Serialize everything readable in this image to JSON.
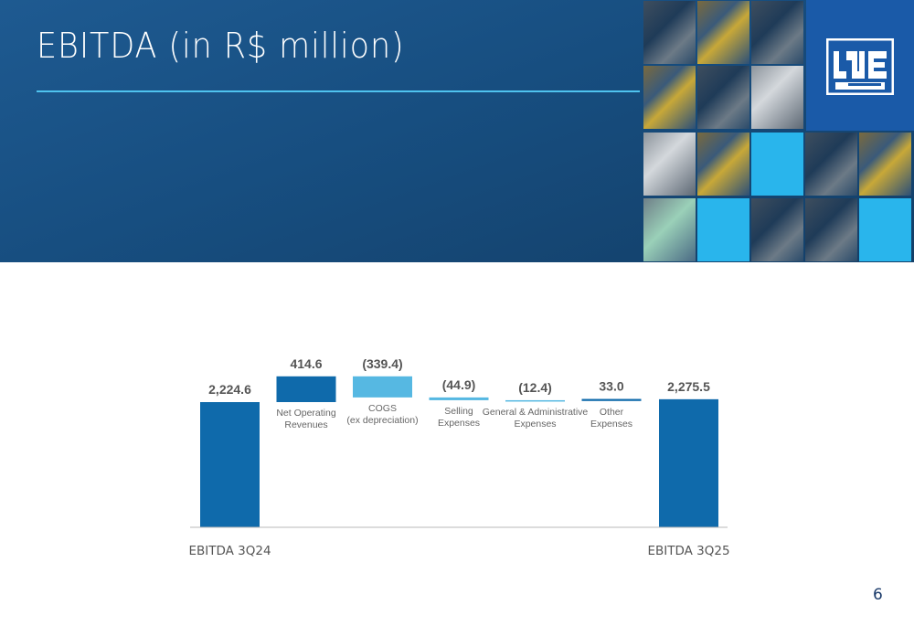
{
  "slide": {
    "title": "EBITDA (in R$ million)",
    "page_number": "6"
  },
  "colors": {
    "header_blue": "#174e80",
    "accent_cyan": "#4fc3ef",
    "bar_dark": "#0f6aab",
    "bar_light": "#56b8e2",
    "bar_mid": "#3aa6db"
  },
  "mosaic_icons": [
    "industrial-photo-tile",
    "logo-mark"
  ],
  "chart_data": {
    "type": "bar",
    "subtype": "waterfall",
    "title": "EBITDA (in R$ million)",
    "categories": [
      "EBITDA 3Q24",
      "Net Operating Revenues",
      "COGS (ex depreciation)",
      "Selling Expenses",
      "General & Administrative Expenses",
      "Other Expenses",
      "EBITDA 3Q25"
    ],
    "values": [
      2224.6,
      414.6,
      -339.4,
      -44.9,
      -12.4,
      33.0,
      2275.5
    ],
    "value_labels": [
      "2,224.6",
      "414.6",
      "(339.4)",
      "(44.9)",
      "(12.4)",
      "33.0",
      "2,275.5"
    ],
    "kinds": [
      "total",
      "delta",
      "delta",
      "delta",
      "delta",
      "delta",
      "total"
    ],
    "bar_labels": [
      [
        "EBITDA 3Q24"
      ],
      [
        "Net Operating",
        "Revenues"
      ],
      [
        "COGS",
        "(ex depreciation)"
      ],
      [
        "Selling",
        "Expenses"
      ],
      [
        "General & Administrative",
        "Expenses"
      ],
      [
        "Other",
        "Expenses"
      ],
      [
        "EBITDA 3Q25"
      ]
    ],
    "bar_colors": [
      "#0f6aab",
      "#0f6aab",
      "#56b8e2",
      "#56b8e2",
      "#56b8e2",
      "#0f6aab",
      "#0f6aab"
    ],
    "axis_break": true,
    "xlabel": "",
    "ylabel": "",
    "grid": false,
    "legend": "none"
  }
}
